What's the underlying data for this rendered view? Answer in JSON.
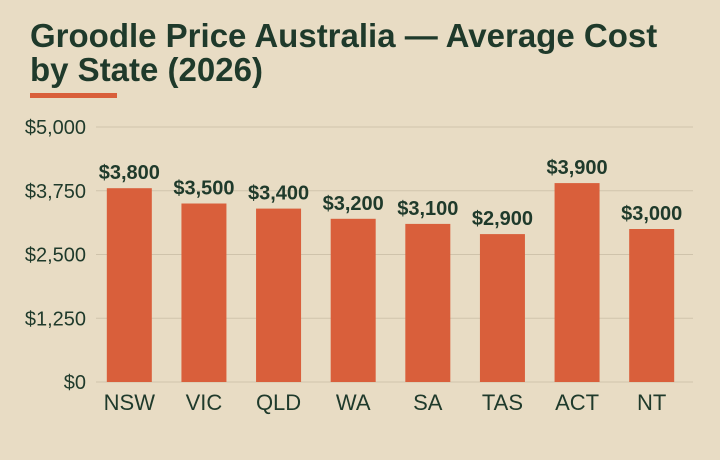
{
  "chart_data": {
    "type": "bar",
    "title": "Groodle Price Australia — Average Cost by State (2026)",
    "xlabel": "",
    "ylabel": "",
    "categories": [
      "NSW",
      "VIC",
      "QLD",
      "WA",
      "SA",
      "TAS",
      "ACT",
      "NT"
    ],
    "values": [
      3800,
      3500,
      3400,
      3200,
      3100,
      2900,
      3900,
      3000
    ],
    "data_labels": [
      "$3,800",
      "$3,500",
      "$3,400",
      "$3,200",
      "$3,100",
      "$2,900",
      "$3,900",
      "$3,000"
    ],
    "ylim": [
      0,
      5000
    ],
    "yticks": [
      0,
      1250,
      2500,
      3750,
      5000
    ],
    "ytick_labels": [
      "$0",
      "$1,250",
      "$2,500",
      "$3,750",
      "$5,000"
    ],
    "grid": true,
    "legend": "none",
    "colors": {
      "background": "#e8dcc4",
      "bar": "#d95f3b",
      "text": "#1f3a2b",
      "accent": "#d95f3b",
      "grid": "#cfc3ab"
    }
  }
}
